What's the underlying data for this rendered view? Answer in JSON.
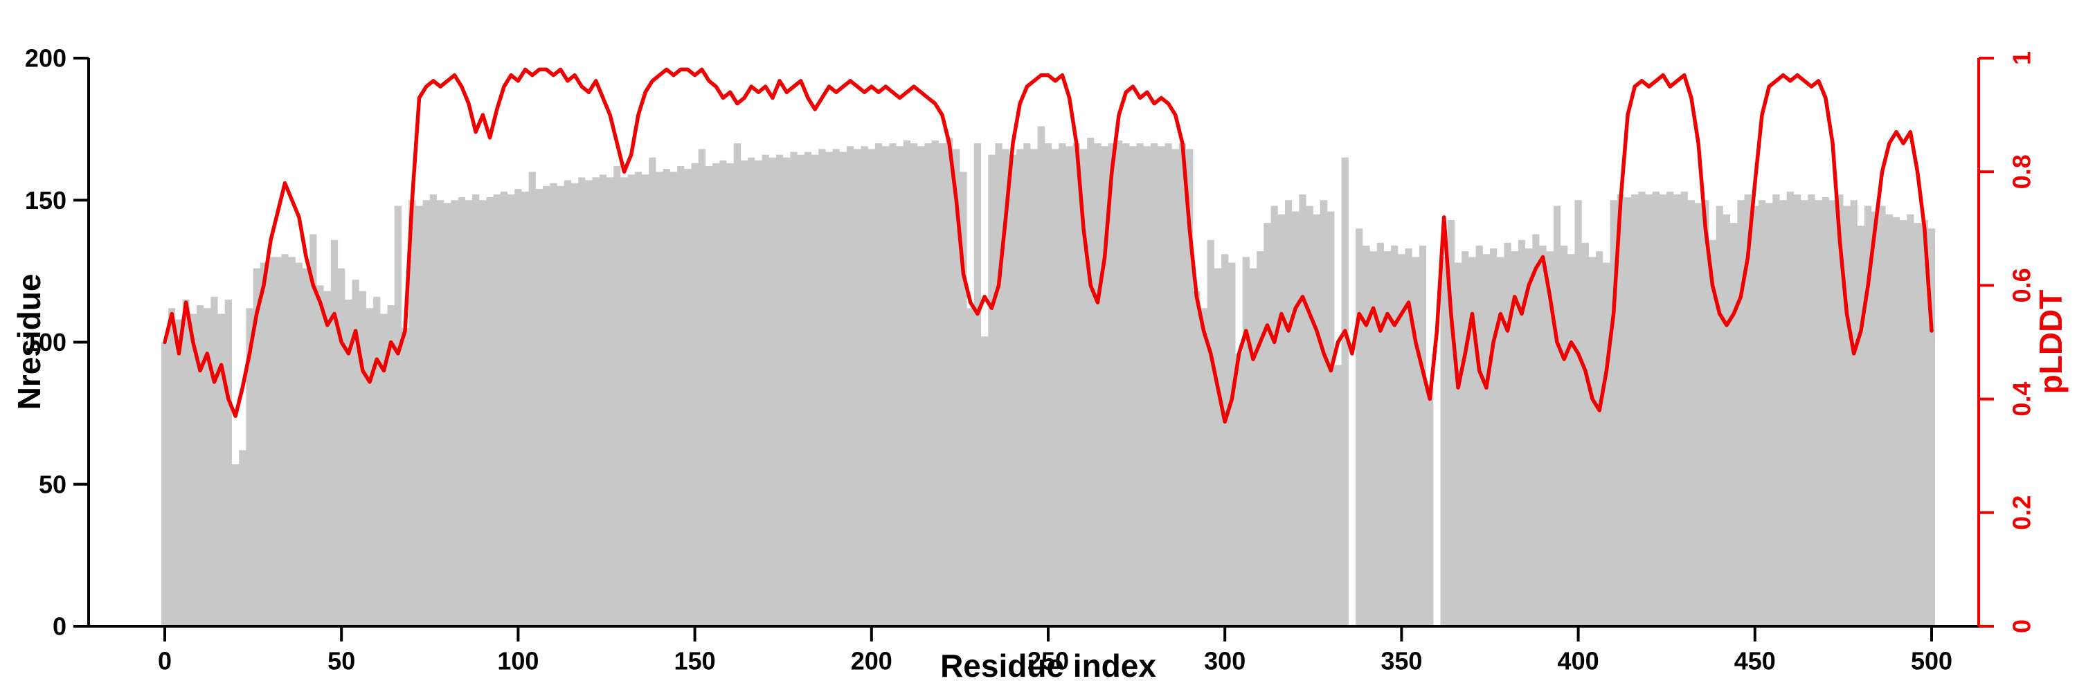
{
  "chart_data": {
    "type": "bar",
    "overlay_type": "line",
    "title": "",
    "xlabel": "Residue index",
    "ylabel_left": "Nresidue",
    "ylabel_right": "pLDDT",
    "xlim": [
      0,
      500
    ],
    "ylim_left": [
      0,
      200
    ],
    "ylim_right": [
      0,
      1
    ],
    "x_ticks": [
      0,
      50,
      100,
      150,
      200,
      250,
      300,
      350,
      400,
      450,
      500
    ],
    "left_ticks": [
      0,
      50,
      100,
      150,
      200
    ],
    "right_ticks": [
      0,
      0.2,
      0.4,
      0.6,
      0.8,
      1
    ],
    "right_tick_labels": [
      "0",
      "0.2",
      "0.4",
      "0.6",
      "0.8",
      "1"
    ],
    "bar_color": "#c8c8c8",
    "line_color": "#ee0000",
    "axis_color": "#000000",
    "grid": false,
    "legend": "none",
    "x": [
      0,
      2,
      4,
      6,
      8,
      10,
      12,
      14,
      16,
      18,
      20,
      22,
      24,
      26,
      28,
      30,
      32,
      34,
      36,
      38,
      40,
      42,
      44,
      46,
      48,
      50,
      52,
      54,
      56,
      58,
      60,
      62,
      64,
      66,
      68,
      70,
      72,
      74,
      76,
      78,
      80,
      82,
      84,
      86,
      88,
      90,
      92,
      94,
      96,
      98,
      100,
      102,
      104,
      106,
      108,
      110,
      112,
      114,
      116,
      118,
      120,
      122,
      124,
      126,
      128,
      130,
      132,
      134,
      136,
      138,
      140,
      142,
      144,
      146,
      148,
      150,
      152,
      154,
      156,
      158,
      160,
      162,
      164,
      166,
      168,
      170,
      172,
      174,
      176,
      178,
      180,
      182,
      184,
      186,
      188,
      190,
      192,
      194,
      196,
      198,
      200,
      202,
      204,
      206,
      208,
      210,
      212,
      214,
      216,
      218,
      220,
      222,
      224,
      226,
      228,
      230,
      232,
      234,
      236,
      238,
      240,
      242,
      244,
      246,
      248,
      250,
      252,
      254,
      256,
      258,
      260,
      262,
      264,
      266,
      268,
      270,
      272,
      274,
      276,
      278,
      280,
      282,
      284,
      286,
      288,
      290,
      292,
      294,
      296,
      298,
      300,
      302,
      304,
      306,
      308,
      310,
      312,
      314,
      316,
      318,
      320,
      322,
      324,
      326,
      328,
      330,
      332,
      334,
      336,
      338,
      340,
      342,
      344,
      346,
      348,
      350,
      352,
      354,
      356,
      358,
      360,
      362,
      364,
      366,
      368,
      370,
      372,
      374,
      376,
      378,
      380,
      382,
      384,
      386,
      388,
      390,
      392,
      394,
      396,
      398,
      400,
      402,
      404,
      406,
      408,
      410,
      412,
      414,
      416,
      418,
      420,
      422,
      424,
      426,
      428,
      430,
      432,
      434,
      436,
      438,
      440,
      442,
      444,
      446,
      448,
      450,
      452,
      454,
      456,
      458,
      460,
      462,
      464,
      466,
      468,
      470,
      472,
      474,
      476,
      478,
      480,
      482,
      484,
      486,
      488,
      490,
      492,
      494,
      496,
      498,
      500
    ],
    "series": [
      {
        "name": "Nresidue",
        "axis": "left",
        "render": "bar",
        "values": [
          100,
          112,
          108,
          115,
          110,
          113,
          112,
          116,
          110,
          115,
          57,
          62,
          112,
          126,
          128,
          130,
          130,
          131,
          130,
          128,
          126,
          138,
          120,
          118,
          136,
          126,
          115,
          122,
          118,
          112,
          116,
          110,
          113,
          148,
          105,
          150,
          148,
          150,
          152,
          150,
          149,
          150,
          151,
          150,
          152,
          150,
          151,
          152,
          153,
          152,
          154,
          153,
          160,
          154,
          155,
          156,
          155,
          157,
          156,
          158,
          157,
          158,
          159,
          158,
          162,
          158,
          159,
          160,
          159,
          165,
          160,
          161,
          160,
          162,
          161,
          163,
          168,
          162,
          163,
          164,
          163,
          170,
          164,
          165,
          164,
          166,
          165,
          166,
          165,
          167,
          166,
          167,
          166,
          168,
          167,
          168,
          167,
          169,
          168,
          169,
          168,
          170,
          169,
          170,
          169,
          171,
          170,
          169,
          170,
          171,
          170,
          172,
          168,
          160,
          112,
          170,
          102,
          166,
          170,
          168,
          166,
          168,
          170,
          168,
          176,
          170,
          168,
          170,
          169,
          170,
          168,
          172,
          170,
          169,
          170,
          171,
          170,
          169,
          170,
          169,
          170,
          169,
          170,
          168,
          170,
          168,
          118,
          112,
          136,
          126,
          131,
          128,
          96,
          130,
          126,
          132,
          142,
          148,
          145,
          150,
          146,
          152,
          148,
          145,
          150,
          146,
          92,
          165,
          0,
          140,
          134,
          132,
          135,
          132,
          134,
          131,
          133,
          130,
          134,
          85,
          0,
          130,
          143,
          128,
          132,
          130,
          134,
          131,
          133,
          130,
          135,
          132,
          136,
          133,
          138,
          134,
          132,
          148,
          134,
          131,
          150,
          135,
          130,
          132,
          128,
          150,
          152,
          151,
          152,
          153,
          152,
          153,
          152,
          153,
          152,
          153,
          150,
          149,
          150,
          136,
          148,
          145,
          142,
          150,
          152,
          148,
          150,
          149,
          152,
          150,
          153,
          152,
          150,
          152,
          150,
          151,
          150,
          152,
          148,
          150,
          141,
          148,
          146,
          148,
          145,
          144,
          143,
          145,
          142,
          143,
          140
        ]
      },
      {
        "name": "pLDDT",
        "axis": "right",
        "render": "line",
        "values": [
          0.5,
          0.55,
          0.48,
          0.57,
          0.5,
          0.45,
          0.48,
          0.43,
          0.46,
          0.4,
          0.37,
          0.42,
          0.48,
          0.55,
          0.6,
          0.68,
          0.73,
          0.78,
          0.75,
          0.72,
          0.65,
          0.6,
          0.57,
          0.53,
          0.55,
          0.5,
          0.48,
          0.52,
          0.45,
          0.43,
          0.47,
          0.45,
          0.5,
          0.48,
          0.52,
          0.75,
          0.93,
          0.95,
          0.96,
          0.95,
          0.96,
          0.97,
          0.95,
          0.92,
          0.87,
          0.9,
          0.86,
          0.91,
          0.95,
          0.97,
          0.96,
          0.98,
          0.97,
          0.98,
          0.98,
          0.97,
          0.98,
          0.96,
          0.97,
          0.95,
          0.94,
          0.96,
          0.93,
          0.9,
          0.85,
          0.8,
          0.83,
          0.9,
          0.94,
          0.96,
          0.97,
          0.98,
          0.97,
          0.98,
          0.98,
          0.97,
          0.98,
          0.96,
          0.95,
          0.93,
          0.94,
          0.92,
          0.93,
          0.95,
          0.94,
          0.95,
          0.93,
          0.96,
          0.94,
          0.95,
          0.96,
          0.93,
          0.91,
          0.93,
          0.95,
          0.94,
          0.95,
          0.96,
          0.95,
          0.94,
          0.95,
          0.94,
          0.95,
          0.94,
          0.93,
          0.94,
          0.95,
          0.94,
          0.93,
          0.92,
          0.9,
          0.85,
          0.75,
          0.62,
          0.57,
          0.55,
          0.58,
          0.56,
          0.6,
          0.72,
          0.85,
          0.92,
          0.95,
          0.96,
          0.97,
          0.97,
          0.96,
          0.97,
          0.93,
          0.85,
          0.7,
          0.6,
          0.57,
          0.65,
          0.8,
          0.9,
          0.94,
          0.95,
          0.93,
          0.94,
          0.92,
          0.93,
          0.92,
          0.9,
          0.85,
          0.7,
          0.58,
          0.52,
          0.48,
          0.42,
          0.36,
          0.4,
          0.48,
          0.52,
          0.47,
          0.5,
          0.53,
          0.5,
          0.55,
          0.52,
          0.56,
          0.58,
          0.55,
          0.52,
          0.48,
          0.45,
          0.5,
          0.52,
          0.48,
          0.55,
          0.53,
          0.56,
          0.52,
          0.55,
          0.53,
          0.55,
          0.57,
          0.5,
          0.45,
          0.4,
          0.52,
          0.72,
          0.55,
          0.42,
          0.48,
          0.55,
          0.45,
          0.42,
          0.5,
          0.55,
          0.52,
          0.58,
          0.55,
          0.6,
          0.63,
          0.65,
          0.58,
          0.5,
          0.47,
          0.5,
          0.48,
          0.45,
          0.4,
          0.38,
          0.45,
          0.55,
          0.75,
          0.9,
          0.95,
          0.96,
          0.95,
          0.96,
          0.97,
          0.95,
          0.96,
          0.97,
          0.93,
          0.85,
          0.7,
          0.6,
          0.55,
          0.53,
          0.55,
          0.58,
          0.65,
          0.78,
          0.9,
          0.95,
          0.96,
          0.97,
          0.96,
          0.97,
          0.96,
          0.95,
          0.96,
          0.93,
          0.85,
          0.68,
          0.55,
          0.48,
          0.52,
          0.6,
          0.7,
          0.8,
          0.85,
          0.87,
          0.85,
          0.87,
          0.8,
          0.7,
          0.52
        ]
      }
    ]
  }
}
